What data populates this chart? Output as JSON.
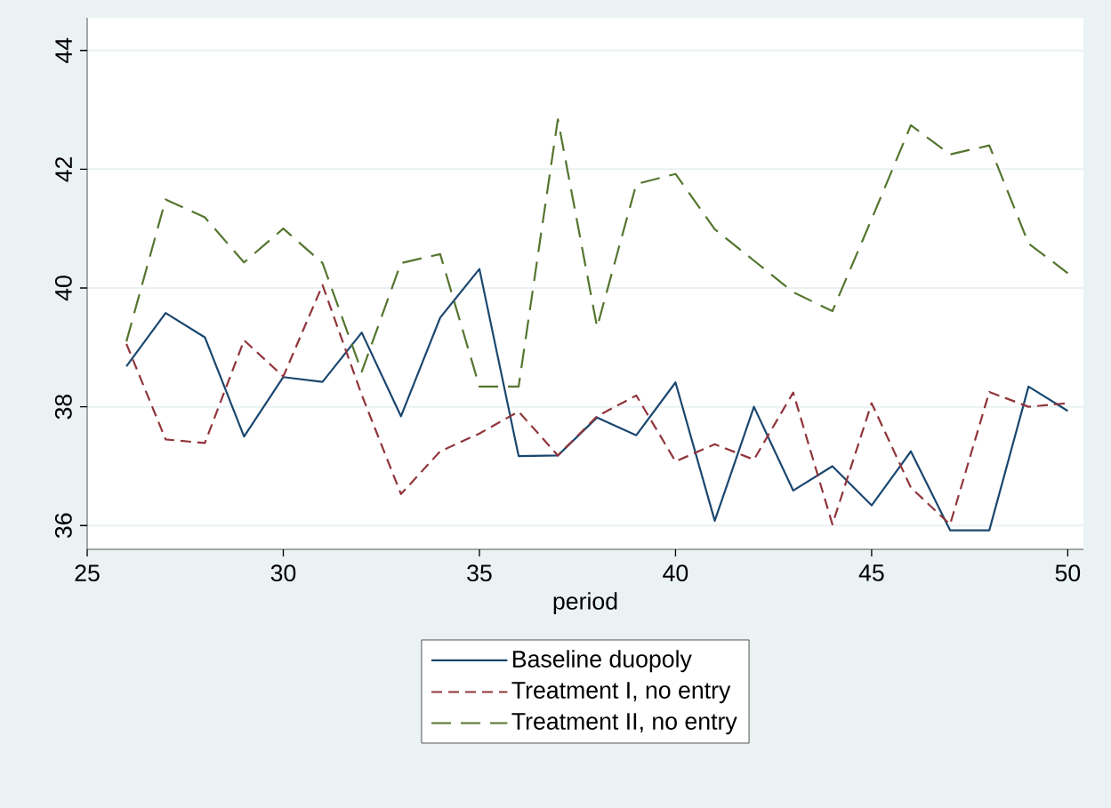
{
  "chart_data": {
    "type": "line",
    "xlabel": "period",
    "x": [
      26,
      27,
      28,
      29,
      30,
      31,
      32,
      33,
      34,
      35,
      36,
      37,
      38,
      39,
      40,
      41,
      42,
      43,
      44,
      45,
      46,
      47,
      48,
      49,
      50
    ],
    "xlim": [
      25,
      50.4
    ],
    "ylim": [
      35.6,
      44.55
    ],
    "xticks": [
      25,
      30,
      35,
      40,
      45,
      50
    ],
    "yticks": [
      36,
      38,
      40,
      42,
      44
    ],
    "grid": "y",
    "legend": "bottom",
    "series": [
      {
        "name": "Baseline duopoly",
        "color": "#1a476f",
        "line_style": "solid",
        "values": [
          38.68,
          39.58,
          39.17,
          37.5,
          38.5,
          38.42,
          39.25,
          37.84,
          39.5,
          40.32,
          37.17,
          37.18,
          37.82,
          37.52,
          38.41,
          36.08,
          38.0,
          36.59,
          37.0,
          36.34,
          37.25,
          35.92,
          35.92,
          38.34,
          37.93
        ]
      },
      {
        "name": "Treatment I, no entry",
        "color": "#90353b",
        "line_style": "dashed",
        "values": [
          39.06,
          37.45,
          37.39,
          39.12,
          38.51,
          40.05,
          38.2,
          36.53,
          37.25,
          37.55,
          37.92,
          37.18,
          37.84,
          38.19,
          37.08,
          37.37,
          37.11,
          38.24,
          36.02,
          38.06,
          36.64,
          36.02,
          38.25,
          38.0,
          38.06
        ]
      },
      {
        "name": "Treatment II, no entry",
        "color": "#55752f",
        "line_style": "dashed",
        "values": [
          39.1,
          41.49,
          41.19,
          40.43,
          41.0,
          40.42,
          38.59,
          40.42,
          40.57,
          38.34,
          38.34,
          42.84,
          39.34,
          41.75,
          41.92,
          40.99,
          40.46,
          39.93,
          39.61,
          41.16,
          42.74,
          42.25,
          42.4,
          40.75,
          40.25
        ]
      }
    ]
  }
}
